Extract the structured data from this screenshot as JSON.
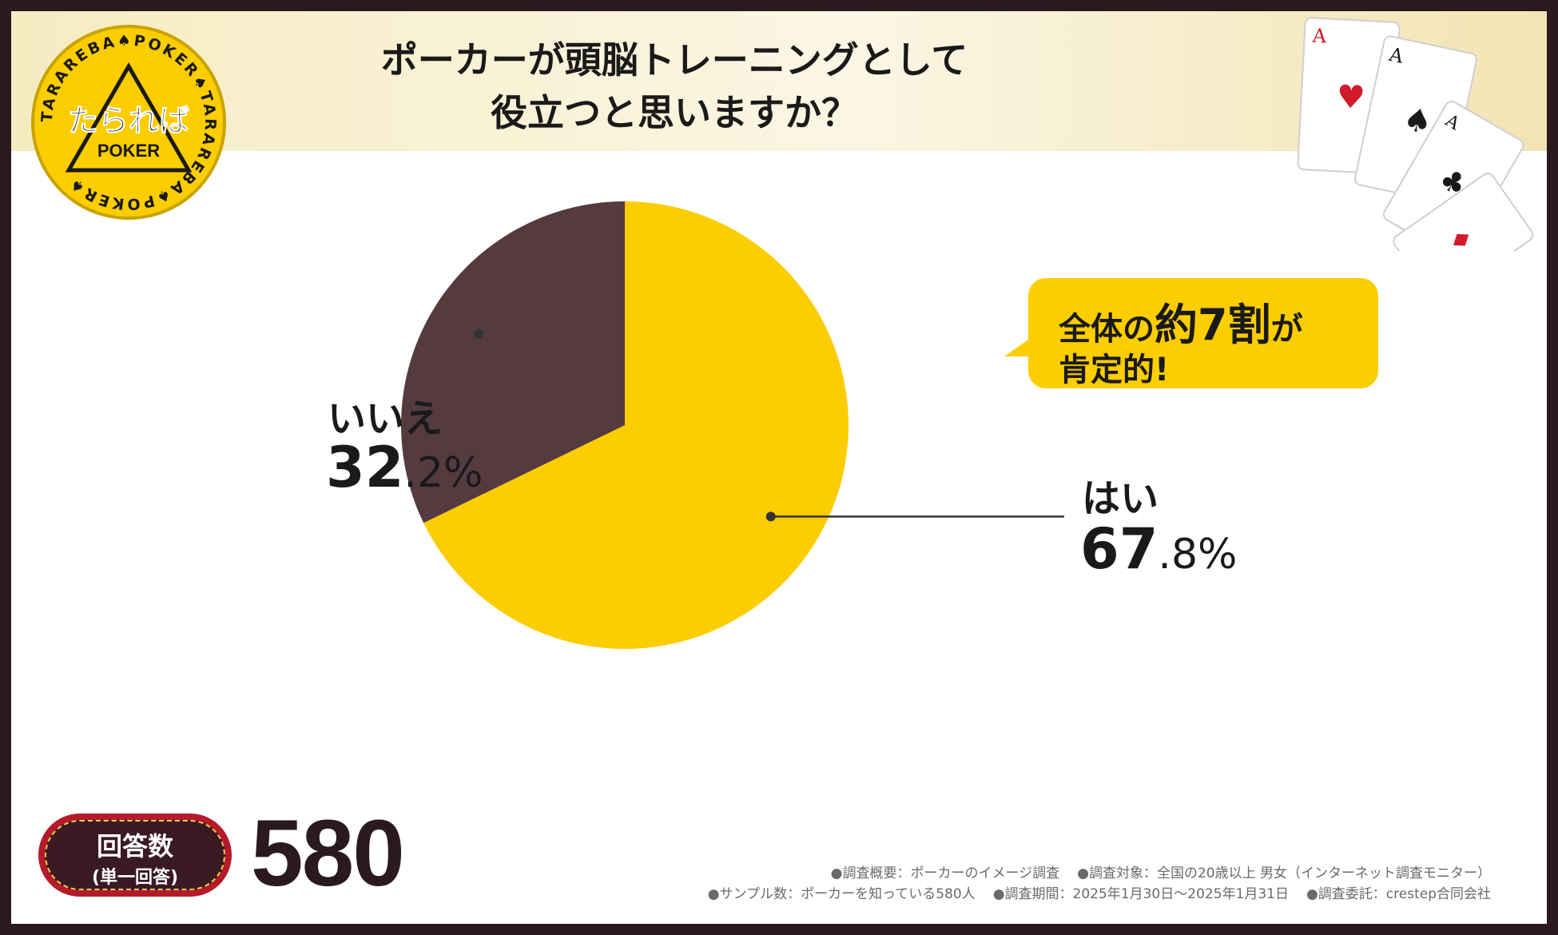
{
  "title_lines": [
    "ポーカーが頭脳トレーニングとして",
    "役立つと思いますか？"
  ],
  "logo": {
    "main": "たられば",
    "sub": "POKER",
    "ring_text": "TARAREBA♠POKER♠TARAREBA♠POKER♠"
  },
  "callout": {
    "pre": "全体の",
    "emph": "約7割",
    "post": "が",
    "line2": "肯定的!"
  },
  "labels": {
    "yes_name": "はい",
    "yes_int": "67",
    "yes_frac": ".8%",
    "no_name": "いいえ",
    "no_int": "32",
    "no_frac": ".2%"
  },
  "responses": {
    "label": "回答数",
    "sub": "(単一回答)",
    "count": "580"
  },
  "notes": {
    "line1": [
      "●調査概要：ポーカーのイメージ調査",
      "●調査対象：全国の20歳以上 男女（インターネット調査モニター）"
    ],
    "line2": [
      "●サンプル数：ポーカーを知っている580人",
      "●調査期間：2025年1月30日〜2025年1月31日",
      "●調査委託：crestep合同会社"
    ]
  },
  "colors": {
    "yes": "#fccd00",
    "no": "#553a40",
    "frame": "#2a1a1e",
    "leader": "#333333"
  },
  "chart_data": {
    "type": "pie",
    "title": "ポーカーが頭脳トレーニングとして役立つと思いますか？",
    "categories": [
      "はい",
      "いいえ"
    ],
    "values": [
      67.8,
      32.2
    ],
    "unit": "%",
    "start_angle": "12 o'clock",
    "direction": "clockwise"
  }
}
